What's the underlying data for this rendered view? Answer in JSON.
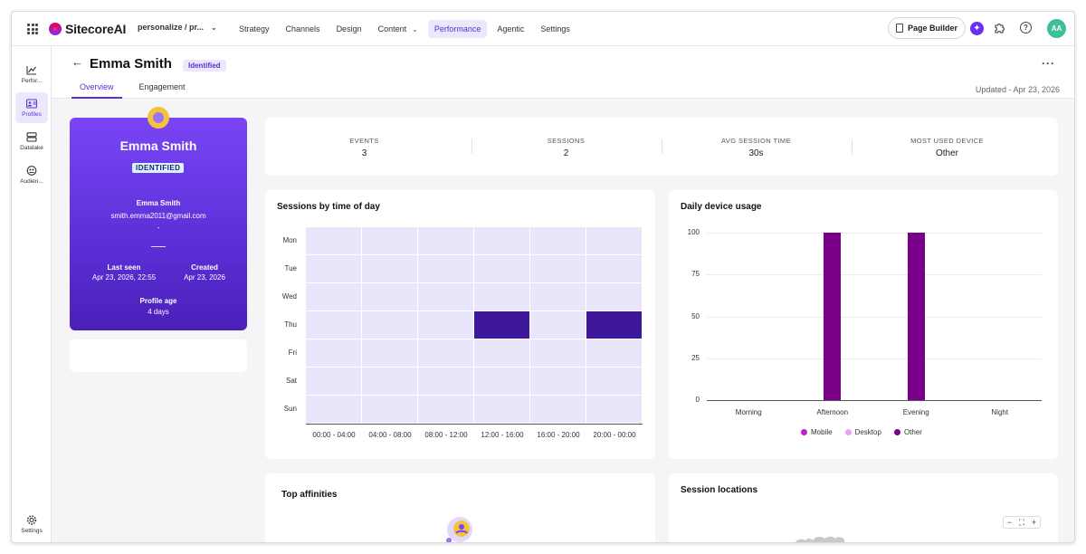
{
  "app": {
    "logo_text": "SitecoreAI",
    "site_selector": "personalize / pr...",
    "nav": [
      "Strategy",
      "Channels",
      "Design",
      "Content",
      "Performance",
      "Agentic",
      "Settings"
    ],
    "active_nav": "Performance",
    "page_builder_label": "Page Builder",
    "avatar_initials": "AA",
    "accent_color": "#5b2fd8"
  },
  "rail": {
    "items": [
      "Perfor...",
      "Profiles",
      "Datalake",
      "Audien..."
    ],
    "active": "Profiles",
    "settings_label": "Settings"
  },
  "header": {
    "title": "Emma Smith",
    "status_badge": "Identified",
    "tabs": [
      "Overview",
      "Engagement"
    ],
    "active_tab": "Overview",
    "updated": "Updated - Apr 23, 2026",
    "more": "···"
  },
  "profile": {
    "name": "Emma Smith",
    "badge": "IDENTIFIED",
    "display_name": "Emma Smith",
    "email": "smith.emma2011@gmail.com",
    "dash": "-",
    "last_seen_label": "Last seen",
    "last_seen_value": "Apr 23, 2026, 22:55",
    "created_label": "Created",
    "created_value": "Apr 23, 2026",
    "age_label": "Profile age",
    "age_value": "4 days"
  },
  "stats": [
    {
      "label": "EVENTS",
      "value": "3"
    },
    {
      "label": "SESSIONS",
      "value": "2"
    },
    {
      "label": "AVG SESSION TIME",
      "value": "30s"
    },
    {
      "label": "MOST USED DEVICE",
      "value": "Other"
    }
  ],
  "panels": {
    "sessions_title": "Sessions by time of day",
    "device_title": "Daily device usage",
    "affinities_title": "Top affinities",
    "locations_title": "Session locations"
  },
  "chart_data": [
    {
      "type": "heatmap",
      "title": "Sessions by time of day",
      "rows": [
        "Mon",
        "Tue",
        "Wed",
        "Thu",
        "Fri",
        "Sat",
        "Sun"
      ],
      "columns": [
        "00:00 - 04:00",
        "04:00 - 08:00",
        "08:00 - 12:00",
        "12:00 - 16:00",
        "16:00 - 20:00",
        "20:00 - 00:00"
      ],
      "values": [
        [
          0,
          0,
          0,
          0,
          0,
          0
        ],
        [
          0,
          0,
          0,
          0,
          0,
          0
        ],
        [
          0,
          0,
          0,
          0,
          0,
          0
        ],
        [
          0,
          0,
          0,
          1,
          0,
          1
        ],
        [
          0,
          0,
          0,
          0,
          0,
          0
        ],
        [
          0,
          0,
          0,
          0,
          0,
          0
        ],
        [
          0,
          0,
          0,
          0,
          0,
          0
        ]
      ],
      "colors": {
        "empty": "#e9e6fb",
        "filled": "#3d189a"
      }
    },
    {
      "type": "bar",
      "title": "Daily device usage",
      "categories": [
        "Morning",
        "Afternoon",
        "Evening",
        "Night"
      ],
      "yticks": [
        100,
        75,
        50,
        25,
        0
      ],
      "ylim": [
        0,
        100
      ],
      "series": [
        {
          "name": "Mobile",
          "color": "#c21fc9",
          "values": [
            0,
            0,
            0,
            0
          ]
        },
        {
          "name": "Desktop",
          "color": "#f29ef0",
          "values": [
            0,
            0,
            0,
            0
          ]
        },
        {
          "name": "Other",
          "color": "#7a008a",
          "values": [
            0,
            100,
            100,
            0
          ]
        }
      ],
      "legend": "bottom",
      "grid": true
    }
  ]
}
